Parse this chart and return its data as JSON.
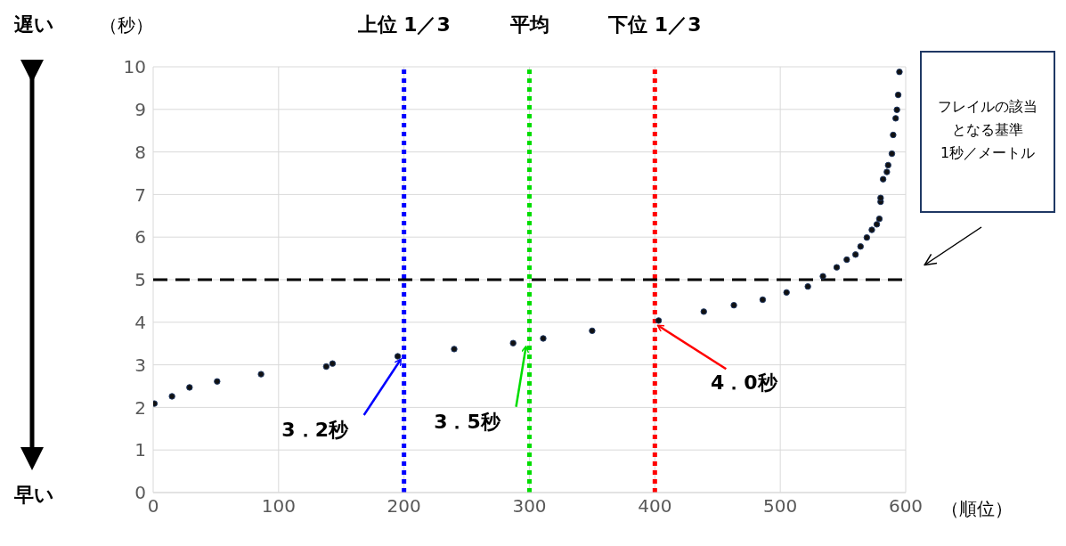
{
  "chart_data": {
    "type": "scatter",
    "xlabel": "（順位）",
    "ylabel": "（秒）",
    "xlim": [
      0,
      600
    ],
    "xticks": [
      0,
      100,
      200,
      300,
      400,
      500,
      600
    ],
    "ylim": [
      0,
      10
    ],
    "yticks": [
      0,
      1,
      2,
      3,
      4,
      5,
      6,
      7,
      8,
      9,
      10
    ],
    "grid": true,
    "marker": "circle",
    "series": [
      {
        "color": "#111111",
        "x": [
          1,
          15,
          29,
          51,
          86,
          138,
          143,
          195,
          240,
          287,
          311,
          350,
          403,
          439,
          463,
          486,
          505,
          522,
          534,
          545,
          553,
          560,
          564,
          569,
          573,
          577,
          579,
          580,
          580,
          582,
          585,
          586,
          589,
          590,
          592,
          593,
          594,
          595
        ],
        "values": [
          2.09,
          2.26,
          2.47,
          2.61,
          2.78,
          2.96,
          3.03,
          3.2,
          3.37,
          3.51,
          3.62,
          3.8,
          4.04,
          4.25,
          4.4,
          4.53,
          4.7,
          4.84,
          5.08,
          5.29,
          5.47,
          5.59,
          5.78,
          5.99,
          6.17,
          6.3,
          6.43,
          6.83,
          6.92,
          7.36,
          7.53,
          7.69,
          7.96,
          8.4,
          8.79,
          8.99,
          9.34,
          9.88
        ]
      }
    ],
    "ref_lines": [
      {
        "axis": "x",
        "value": 200,
        "label": "上位 1／3",
        "color": "#0000ff",
        "line_style": "dotted"
      },
      {
        "axis": "x",
        "value": 300,
        "label": "平均",
        "color": "#00dd00",
        "line_style": "dotted"
      },
      {
        "axis": "x",
        "value": 400,
        "label": "下位 1／3",
        "color": "#ff0000",
        "line_style": "dotted"
      },
      {
        "axis": "y",
        "value": 5,
        "label": null,
        "color": "#000000",
        "line_style": "dashed"
      }
    ],
    "annotations": [
      {
        "text": "3．2秒",
        "x": 200,
        "y": 3.2
      },
      {
        "text": "3．5秒",
        "x": 300,
        "y": 3.5
      },
      {
        "text": "4．0秒",
        "x": 400,
        "y": 4.0
      },
      "遅い",
      "早い",
      "フレイルの該当",
      "となる基準",
      "1秒／メートル"
    ]
  }
}
